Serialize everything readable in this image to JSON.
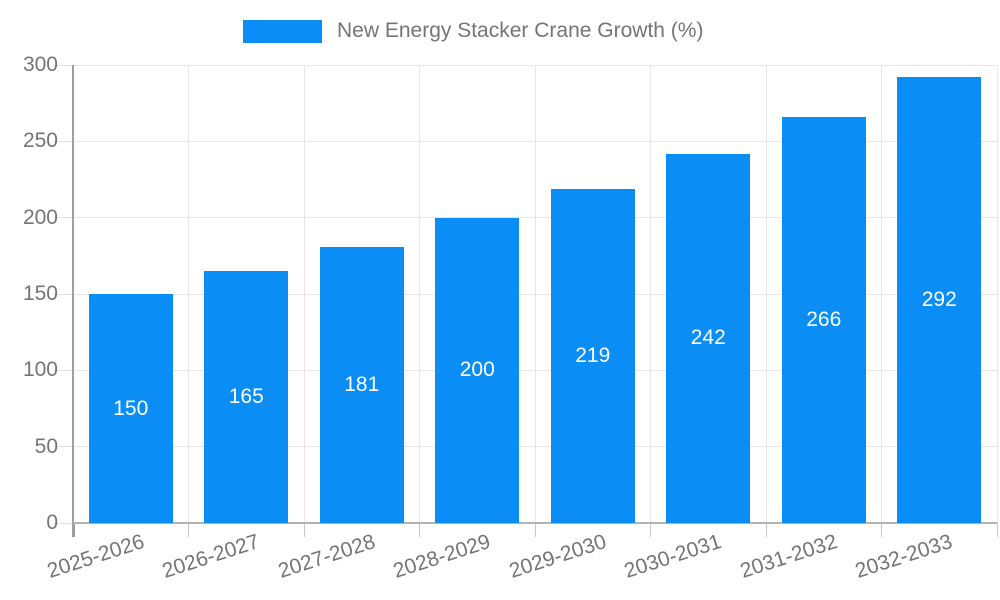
{
  "colors": {
    "bar": "#0a8ef5",
    "axis_text": "#757575",
    "grid_line": "#e6e6e6",
    "y_axis_line": "#9e9e9e",
    "x_axis_line": "#b3b3b3",
    "tick": "#c9c9c9",
    "value_label": "#ffffff",
    "background": "#ffffff"
  },
  "chart_data": {
    "type": "bar",
    "title": "New Energy Stacker Crane Growth (%)",
    "categories": [
      "2025-2026",
      "2026-2027",
      "2027-2028",
      "2028-2029",
      "2029-2030",
      "2030-2031",
      "2031-2032",
      "2032-2033"
    ],
    "values": [
      150,
      165,
      181,
      200,
      219,
      242,
      266,
      292
    ],
    "xlabel": "",
    "ylabel": "",
    "ylim": [
      0,
      300
    ],
    "yticks": [
      0,
      50,
      100,
      150,
      200,
      250,
      300
    ],
    "grid": "on",
    "legend_position": "top",
    "value_labels": "inside-center",
    "x_label_rotation_deg": -18
  }
}
